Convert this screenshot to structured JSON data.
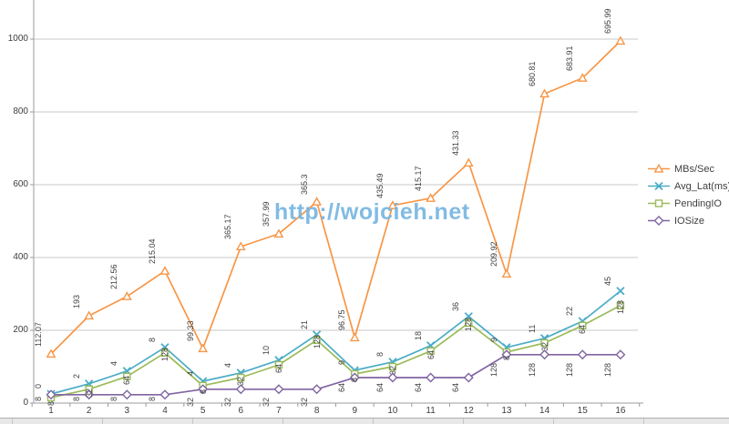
{
  "watermark": {
    "text": "http://wojcieh.net",
    "color": "#74b4e1"
  },
  "chart_data": {
    "type": "line",
    "title": "",
    "xlabel": "",
    "ylabel": "",
    "grid": true,
    "legend_position": "right",
    "categories": [
      "1",
      "2",
      "3",
      "4",
      "5",
      "6",
      "7",
      "8",
      "9",
      "10",
      "11",
      "12",
      "13",
      "14",
      "15",
      "16"
    ],
    "y_axis": {
      "ticks": [
        "0",
        "200",
        "400",
        "600",
        "800",
        "1000"
      ],
      "tick_values": [
        0,
        200,
        400,
        600,
        800,
        1000
      ],
      "visible_max": 1000
    },
    "series": [
      {
        "name": "MBs/Sec",
        "color": "#F79646",
        "marker": "triangle",
        "labels": [
          "112.07",
          "193",
          "212.56",
          "215.04",
          "99.33",
          "365.17",
          "357.99",
          "365.3",
          "96.75",
          "435.49",
          "415.17",
          "431.33",
          "209.92",
          "680.81",
          "683.91",
          "695.99"
        ],
        "plot_values": [
          135,
          240,
          293,
          363,
          150,
          430,
          465,
          553,
          180,
          543,
          563,
          660,
          355,
          850,
          893,
          995
        ]
      },
      {
        "name": "Avg_Lat(ms)",
        "color": "#4BACC6",
        "marker": "x",
        "labels": [
          "0",
          "2",
          "4",
          "8",
          "4",
          "4",
          "10",
          "21",
          "9",
          "8",
          "18",
          "36",
          "9",
          "11",
          "22",
          "45"
        ],
        "plot_values": [
          25,
          53,
          88,
          153,
          60,
          83,
          118,
          188,
          90,
          113,
          158,
          238,
          153,
          178,
          225,
          308
        ]
      },
      {
        "name": "PendingIO",
        "color": "#9BBB59",
        "marker": "square",
        "labels": [
          "8",
          "32",
          "64",
          "128",
          "8",
          "32",
          "64",
          "128",
          "8",
          "32",
          "64",
          "128",
          "8",
          "32",
          "64",
          "128"
        ],
        "plot_values": [
          15,
          38,
          73,
          138,
          48,
          70,
          105,
          173,
          80,
          100,
          143,
          220,
          140,
          165,
          213,
          268
        ]
      },
      {
        "name": "IOSize",
        "color": "#8064A2",
        "marker": "diamond",
        "labels": [
          "8",
          "8",
          "8",
          "8",
          "32",
          "32",
          "32",
          "32",
          "64",
          "64",
          "64",
          "64",
          "128",
          "128",
          "128",
          "128"
        ],
        "plot_values": [
          23,
          23,
          23,
          23,
          38,
          38,
          38,
          38,
          70,
          70,
          70,
          70,
          133,
          133,
          133,
          133
        ]
      }
    ]
  }
}
